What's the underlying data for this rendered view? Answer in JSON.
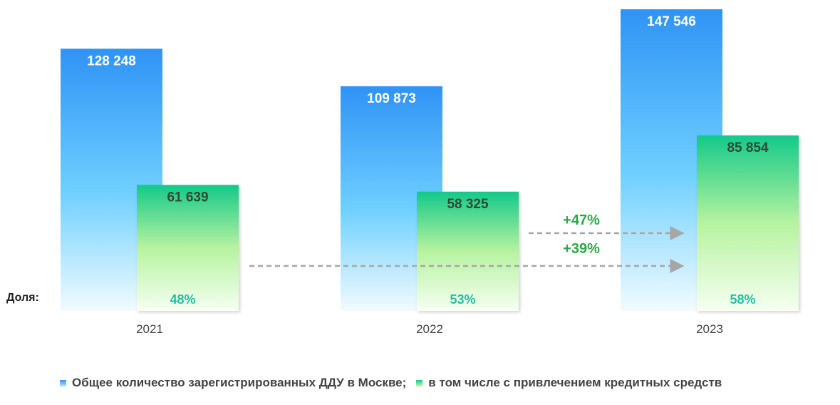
{
  "chart_data": {
    "type": "bar",
    "categories": [
      "2021",
      "2022",
      "2023"
    ],
    "series": [
      {
        "name": "Общее количество зарегистрированных ДДУ в Москве;",
        "values": [
          128248,
          109873,
          147546
        ],
        "labels": [
          "128 248",
          "109 873",
          "147 546"
        ]
      },
      {
        "name": "в том числе с привлечением кредитных средств",
        "values": [
          61639,
          58325,
          85854
        ],
        "labels": [
          "61 639",
          "58 325",
          "85 854"
        ]
      }
    ],
    "shares": [
      "48%",
      "53%",
      "58%"
    ],
    "share_label": "Доля:",
    "annotations": [
      {
        "text": "+47%",
        "from": "2022",
        "to": "2023"
      },
      {
        "text": "+39%",
        "from": "2021",
        "to": "2023"
      }
    ],
    "ylim": [
      0,
      150000
    ],
    "grid": false,
    "legend_position": "bottom",
    "colors": {
      "total_top": "#2f93f5",
      "total_bottom": "#f2fbff",
      "credit_top": "#14c98a",
      "credit_mid": "#b6f3a0",
      "credit_bottom": "#f6fff2",
      "total_label": "#ffffff",
      "credit_label": "#2f4a33",
      "share_label": "#21bfa7",
      "annotation": "#2aa84a",
      "arrow": "#a6a6a6"
    }
  }
}
